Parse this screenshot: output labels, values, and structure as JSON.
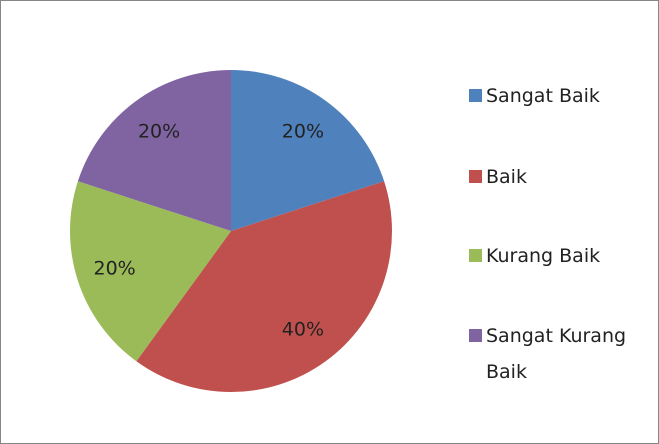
{
  "chart_data": {
    "type": "pie",
    "categories": [
      "Sangat Baik",
      "Baik",
      "Kurang Baik",
      "Sangat Kurang Baik"
    ],
    "values": [
      20,
      40,
      20,
      20
    ],
    "value_labels": [
      "20%",
      "40%",
      "20%",
      "20%"
    ],
    "colors": [
      "#4f81bd",
      "#c0504d",
      "#9bbb59",
      "#8064a2"
    ]
  }
}
